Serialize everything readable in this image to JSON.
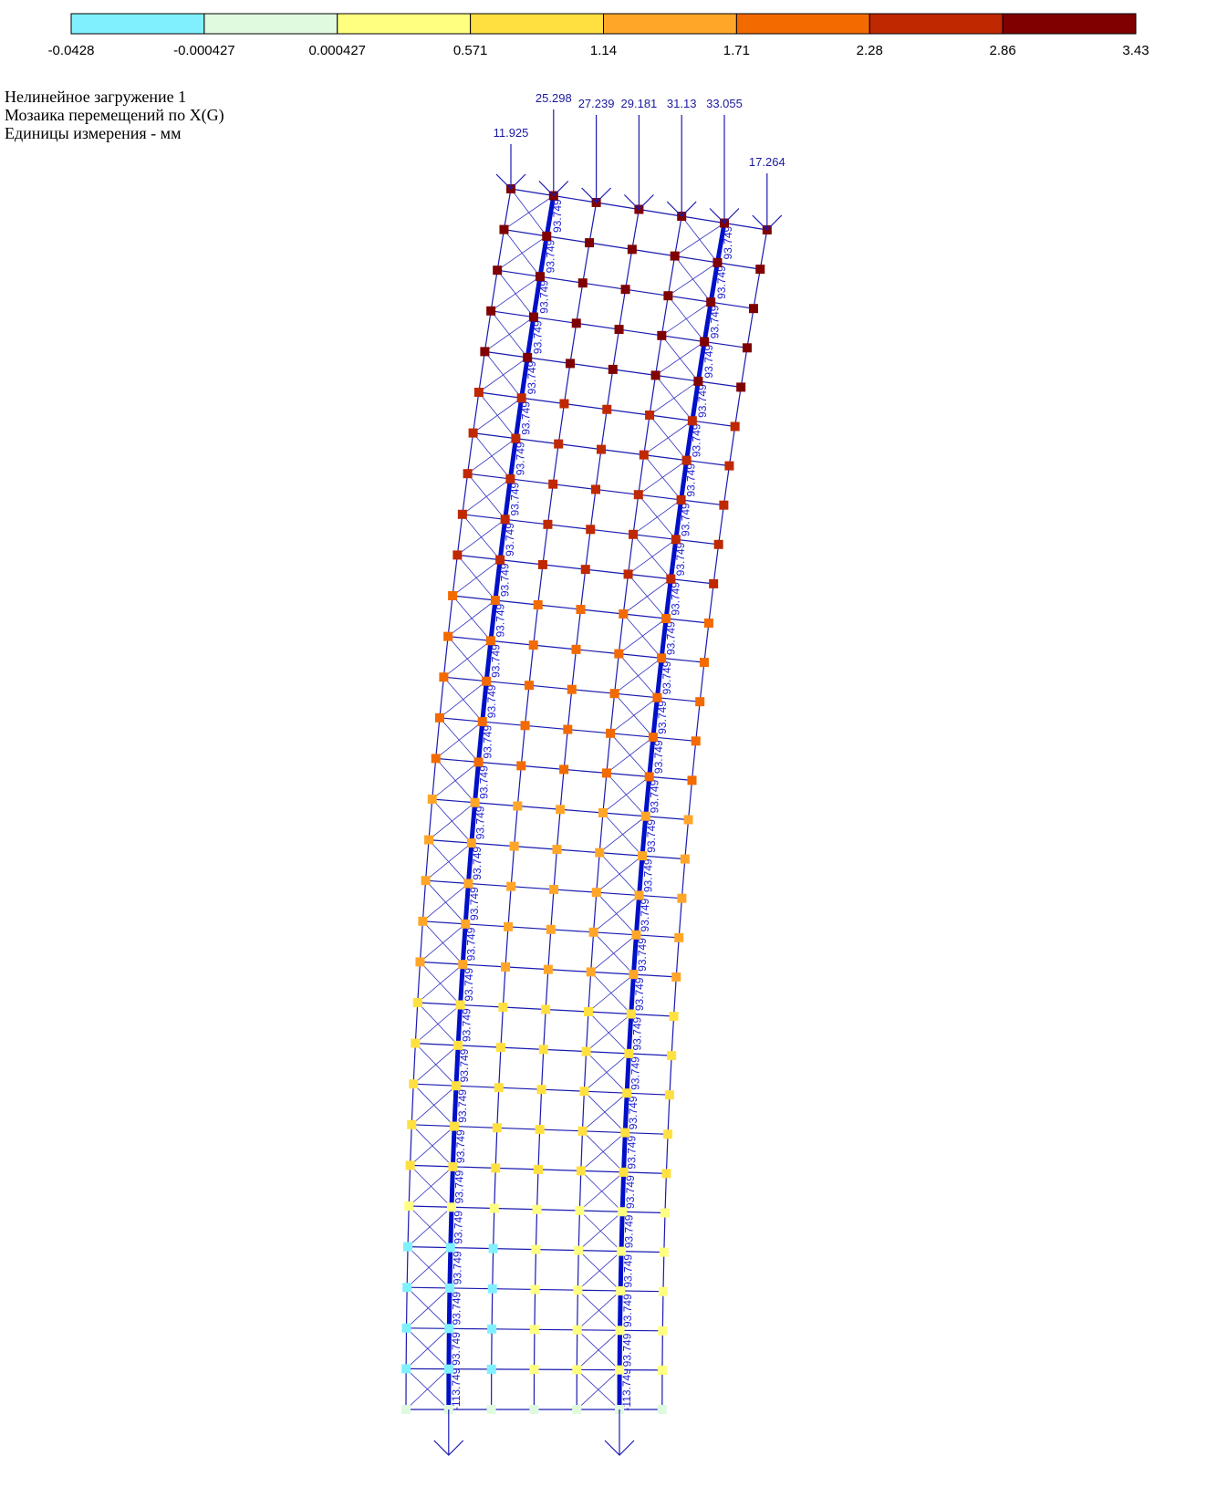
{
  "legend": {
    "colors": [
      "#80f0ff",
      "#e0fae0",
      "#ffff80",
      "#ffe040",
      "#ffa628",
      "#f26a00",
      "#c02800",
      "#800000"
    ],
    "ticks": [
      "-0.0428",
      "-0.000427",
      "0.000427",
      "0.571",
      "1.14",
      "1.71",
      "2.28",
      "2.86",
      "3.43"
    ]
  },
  "info": {
    "lines": [
      "Нелинейное загружение  1",
      "Мозаика перемещений по X(G)",
      "Единицы измерения - мм"
    ]
  },
  "loads": [
    "11.925",
    "25.298",
    "27.239",
    "29.181",
    "31.13",
    "33.055",
    "17.264"
  ],
  "member_label": "93.749",
  "bottom_label": "-113.749"
}
